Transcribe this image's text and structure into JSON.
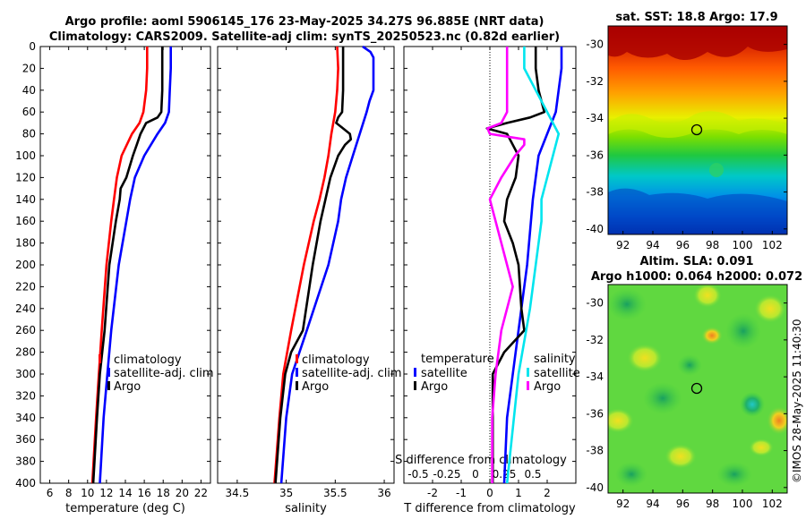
{
  "title_line1": "Argo profile: aoml 5906145_176 23-May-2025 34.27S 96.885E (NRT data)",
  "title_line2": "Climatology: CARS2009. Satellite-adj clim: synTS_20250523.nc (0.82d earlier)",
  "right_side_label": "©IMOS 28-May-2025 11:40:30",
  "colors": {
    "clim": "#ff0000",
    "sat": "#0000ff",
    "argo": "#000000",
    "sat_s": "#00e5ee",
    "argo_s": "#ff00ff"
  },
  "chart_data": [
    {
      "type": "line",
      "name": "temperature",
      "xlabel": "temperature (deg C)",
      "xlim": [
        5,
        23
      ],
      "xticks": [
        6,
        8,
        10,
        12,
        14,
        16,
        18,
        20,
        22
      ],
      "ylim": [
        0,
        400
      ],
      "yticks": [
        0,
        20,
        40,
        60,
        80,
        100,
        120,
        140,
        160,
        180,
        200,
        220,
        240,
        260,
        280,
        300,
        320,
        340,
        360,
        380,
        400
      ],
      "legend": [
        "climatology",
        "satellite-adj. clim",
        "Argo"
      ],
      "series": [
        {
          "name": "climatology",
          "color": "clim",
          "depth": [
            0,
            20,
            40,
            60,
            70,
            80,
            100,
            120,
            140,
            160,
            200,
            260,
            300,
            340,
            400
          ],
          "values": [
            16.3,
            16.3,
            16.2,
            15.9,
            15.5,
            14.7,
            13.6,
            13.1,
            12.8,
            12.5,
            12.0,
            11.5,
            11.2,
            10.9,
            10.5
          ]
        },
        {
          "name": "satellite-adj. clim",
          "color": "sat",
          "depth": [
            0,
            20,
            40,
            60,
            70,
            80,
            100,
            120,
            140,
            160,
            200,
            260,
            300,
            340,
            400
          ],
          "values": [
            18.8,
            18.8,
            18.7,
            18.6,
            18.2,
            17.4,
            16.0,
            15.0,
            14.5,
            14.1,
            13.3,
            12.5,
            12.1,
            11.7,
            11.3
          ]
        },
        {
          "name": "Argo",
          "color": "argo",
          "depth": [
            0,
            20,
            40,
            60,
            65,
            70,
            80,
            90,
            100,
            120,
            130,
            140,
            160,
            200,
            260,
            300,
            340,
            400
          ],
          "values": [
            17.9,
            17.9,
            17.9,
            17.8,
            17.4,
            16.2,
            15.6,
            15.2,
            14.8,
            14.1,
            13.5,
            13.4,
            13.0,
            12.3,
            11.8,
            11.3,
            11.0,
            10.6
          ]
        }
      ]
    },
    {
      "type": "line",
      "name": "salinity",
      "xlabel": "salinity",
      "xlim": [
        34.3,
        36.1
      ],
      "xticks": [
        34.5,
        35,
        35.5,
        36
      ],
      "ylim": [
        0,
        400
      ],
      "legend": [
        "climatology",
        "satellite-adj. clim",
        "Argo"
      ],
      "series": [
        {
          "name": "climatology",
          "color": "clim",
          "depth": [
            0,
            20,
            40,
            60,
            80,
            100,
            120,
            140,
            160,
            200,
            260,
            300,
            340,
            400
          ],
          "values": [
            35.52,
            35.53,
            35.52,
            35.5,
            35.46,
            35.43,
            35.39,
            35.34,
            35.28,
            35.18,
            35.05,
            34.97,
            34.93,
            34.88
          ]
        },
        {
          "name": "satellite-adj. clim",
          "color": "sat",
          "depth": [
            0,
            5,
            10,
            40,
            50,
            60,
            80,
            100,
            120,
            140,
            160,
            200,
            260,
            300,
            340,
            400
          ],
          "values": [
            35.78,
            35.86,
            35.89,
            35.89,
            35.85,
            35.82,
            35.75,
            35.68,
            35.61,
            35.56,
            35.53,
            35.43,
            35.21,
            35.06,
            35.0,
            34.95
          ]
        },
        {
          "name": "Argo",
          "color": "argo",
          "depth": [
            0,
            20,
            40,
            60,
            65,
            70,
            75,
            80,
            85,
            90,
            100,
            120,
            140,
            160,
            200,
            260,
            280,
            300,
            340,
            400
          ],
          "values": [
            35.58,
            35.58,
            35.58,
            35.57,
            35.53,
            35.51,
            35.58,
            35.65,
            35.66,
            35.6,
            35.53,
            35.45,
            35.4,
            35.35,
            35.27,
            35.17,
            35.05,
            34.99,
            34.94,
            34.89
          ]
        }
      ]
    },
    {
      "type": "line",
      "name": "difference",
      "xlabel": "T difference from climatology",
      "xlabel_top": "S difference from climatology",
      "xlim": [
        -3,
        3
      ],
      "xticks": [
        -2,
        -1,
        0,
        1,
        2
      ],
      "xticks_top_labels": [
        "-0.5",
        "-0.25",
        "0",
        "0.25",
        "0.5"
      ],
      "ylim": [
        0,
        400
      ],
      "legend_temperature_title": "temperature",
      "legend_salinity_title": "salinity",
      "legend": [
        "satellite",
        "Argo",
        "satellite",
        "Argo"
      ],
      "series": [
        {
          "name": "T satellite",
          "color": "sat",
          "depth": [
            0,
            20,
            40,
            60,
            80,
            100,
            140,
            200,
            260,
            300,
            340,
            400
          ],
          "values": [
            2.5,
            2.5,
            2.4,
            2.3,
            2.0,
            1.7,
            1.5,
            1.3,
            1.0,
            0.8,
            0.6,
            0.5
          ]
        },
        {
          "name": "T Argo",
          "color": "argo",
          "depth": [
            0,
            20,
            40,
            60,
            65,
            70,
            75,
            80,
            90,
            100,
            120,
            140,
            160,
            180,
            200,
            240,
            260,
            280,
            300,
            340,
            400
          ],
          "values": [
            1.6,
            1.6,
            1.7,
            1.9,
            1.4,
            0.6,
            -0.1,
            0.6,
            0.8,
            1.0,
            0.9,
            0.6,
            0.5,
            0.8,
            1.0,
            1.1,
            1.2,
            0.5,
            0.1,
            0.1,
            0.1
          ]
        },
        {
          "name": "S satellite",
          "color": "sat_s",
          "depth": [
            0,
            20,
            40,
            60,
            80,
            100,
            120,
            140,
            160,
            200,
            240,
            300,
            400
          ],
          "values": [
            0.3,
            0.3,
            0.4,
            0.5,
            0.6,
            0.55,
            0.5,
            0.45,
            0.45,
            0.4,
            0.35,
            0.25,
            0.15
          ]
        },
        {
          "name": "S Argo",
          "color": "argo_s",
          "depth": [
            0,
            20,
            40,
            60,
            70,
            75,
            80,
            85,
            90,
            100,
            120,
            140,
            160,
            180,
            200,
            220,
            260,
            300,
            340,
            400
          ],
          "values": [
            0.15,
            0.15,
            0.15,
            0.15,
            0.1,
            -0.02,
            0.0,
            0.3,
            0.3,
            0.22,
            0.1,
            0.0,
            0.05,
            0.1,
            0.15,
            0.2,
            0.1,
            0.05,
            0.02,
            0.02
          ]
        }
      ]
    },
    {
      "type": "heatmap",
      "name": "sst_map",
      "title": "sat. SST: 18.8 Argo: 17.9",
      "xlim": [
        91,
        103
      ],
      "ylim": [
        -40.3,
        -29
      ],
      "xticks": [
        92,
        94,
        96,
        98,
        100,
        102
      ],
      "yticks": [
        -30,
        -32,
        -34,
        -36,
        -38,
        -40
      ],
      "marker": [
        96.885,
        -34.27
      ]
    },
    {
      "type": "heatmap",
      "name": "sla_map",
      "title_line1": "Altim. SLA: 0.091",
      "title_line2": "Argo h1000: 0.064 h2000: 0.072",
      "xlim": [
        91,
        103
      ],
      "ylim": [
        -40.3,
        -29
      ],
      "xticks": [
        92,
        94,
        96,
        98,
        100,
        102
      ],
      "yticks": [
        -30,
        -32,
        -34,
        -36,
        -38,
        -40
      ],
      "marker": [
        96.885,
        -34.27
      ]
    }
  ]
}
